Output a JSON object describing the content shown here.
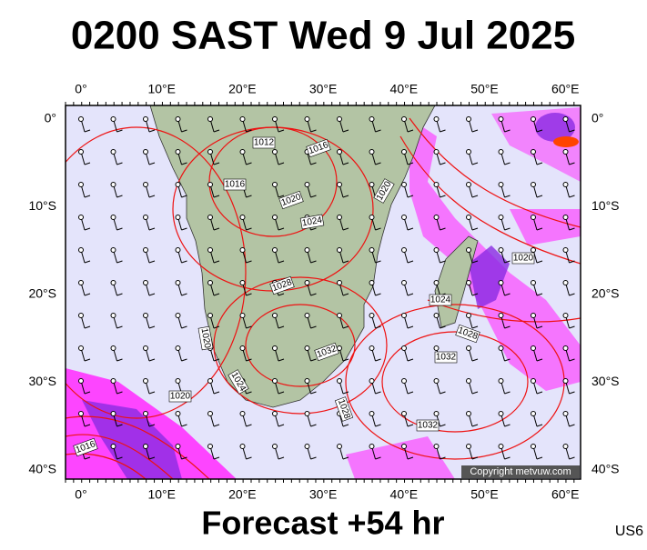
{
  "title": "0200 SAST Wed 9 Jul 2025",
  "footer": "Forecast +54 hr",
  "model": "US6",
  "copyright": "Copyright metvuw.com",
  "longitude_labels": [
    "0°",
    "10°E",
    "20°E",
    "30°E",
    "40°E",
    "50°E",
    "60°E"
  ],
  "latitude_labels": [
    "0°",
    "10°S",
    "20°S",
    "30°S",
    "40°S"
  ],
  "isobar_labels": [
    "1012",
    "1016",
    "1016",
    "1020",
    "1020",
    "1024",
    "1020",
    "1028",
    "1024",
    "1028",
    "1020",
    "1032",
    "1032",
    "1024",
    "1020",
    "1028",
    "1032",
    "1016"
  ]
}
